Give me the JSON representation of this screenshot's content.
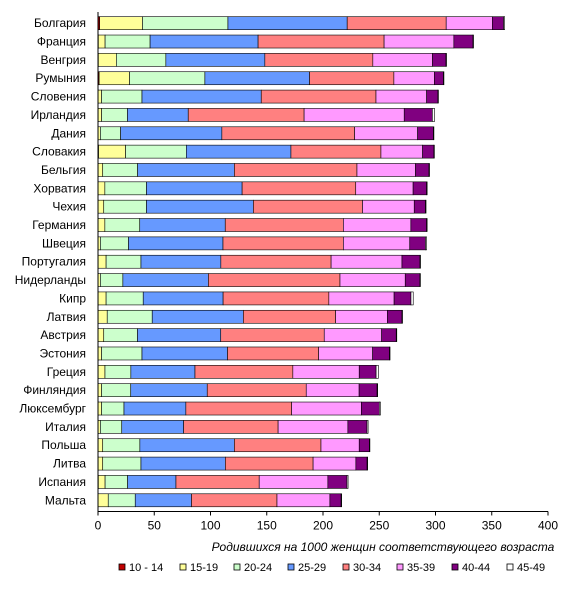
{
  "chart_data": {
    "type": "bar",
    "orientation": "horizontal",
    "stacked": true,
    "xlabel": "Родившихся  на 1000 женщин соответствующего возраста",
    "xlim": [
      0,
      400
    ],
    "xticks": [
      0,
      50,
      100,
      150,
      200,
      250,
      300,
      350,
      400
    ],
    "grid": false,
    "legend_position": "bottom",
    "categories": [
      "Болгария",
      "Франция",
      "Венгрия",
      "Румыния",
      "Словения",
      "Ирландия",
      "Дания",
      "Словакия",
      "Бельгия",
      "Хорватия",
      "Чехия",
      "Германия",
      "Швеция",
      "Португалия",
      "Нидерланды",
      "Кипр",
      "Латвия",
      "Австрия",
      "Эстония",
      "Греция",
      "Финляндия",
      "Люксембург",
      "Италия",
      "Польша",
      "Литва",
      "Испания",
      "Мальта"
    ],
    "series": [
      {
        "name": "10 - 14",
        "color": "#c00000",
        "values": [
          1.5,
          0.3,
          0.3,
          1.0,
          0.1,
          0.2,
          0.1,
          0.5,
          0.2,
          0.1,
          0.1,
          0.1,
          0.1,
          0.2,
          0.1,
          0.2,
          0.2,
          0.1,
          0.1,
          0.2,
          0.1,
          0.1,
          0.1,
          0.2,
          0.2,
          0.3,
          0.1
        ]
      },
      {
        "name": "15-19",
        "color": "#ffff99",
        "values": [
          38,
          6,
          16,
          27,
          3,
          3,
          2,
          24,
          4,
          6,
          5,
          6,
          2,
          7,
          2,
          7,
          8,
          5,
          3,
          6,
          3,
          3,
          2,
          4,
          4,
          6,
          9
        ]
      },
      {
        "name": "20-24",
        "color": "#ccffcc",
        "values": [
          76,
          40,
          44,
          67,
          36,
          23,
          18,
          54,
          31,
          37,
          38,
          31,
          25,
          31,
          20,
          33,
          40,
          30,
          36,
          23,
          26,
          20,
          19,
          33,
          34,
          20,
          24
        ]
      },
      {
        "name": "25-29",
        "color": "#6699ff",
        "values": [
          106,
          96,
          88,
          93,
          106,
          54,
          90,
          93,
          86,
          85,
          95,
          76,
          84,
          71,
          76,
          71,
          81,
          74,
          76,
          57,
          68,
          55,
          55,
          84,
          75,
          43,
          50
        ]
      },
      {
        "name": "30-34",
        "color": "#ff8080",
        "values": [
          88,
          112,
          96,
          75,
          102,
          103,
          118,
          80,
          109,
          101,
          97,
          105,
          107,
          98,
          117,
          94,
          82,
          92,
          81,
          87,
          88,
          94,
          84,
          77,
          78,
          74,
          76
        ]
      },
      {
        "name": "35-39",
        "color": "#ff99ff",
        "values": [
          41,
          62,
          53,
          36,
          45,
          89,
          56,
          37,
          52,
          51,
          46,
          60,
          59,
          63,
          58,
          58,
          46,
          51,
          48,
          59,
          47,
          62,
          62,
          34,
          38,
          61,
          47
        ]
      },
      {
        "name": "40-44",
        "color": "#800080",
        "values": [
          10,
          17,
          12,
          8,
          10,
          25,
          14,
          10,
          12,
          12,
          10,
          14,
          14,
          16,
          13,
          15,
          13,
          13,
          15,
          15,
          16,
          16,
          17,
          9,
          10,
          17,
          10
        ]
      },
      {
        "name": "45-49",
        "color": "#ffffff",
        "values": [
          1,
          0.5,
          0.5,
          0.5,
          0.5,
          2,
          0.5,
          0.5,
          0.5,
          0.5,
          0.5,
          0.5,
          1,
          0.5,
          0.5,
          2,
          0.5,
          0.5,
          0.5,
          2,
          0.5,
          1,
          1,
          0.5,
          0.5,
          1,
          0.5
        ]
      }
    ]
  }
}
